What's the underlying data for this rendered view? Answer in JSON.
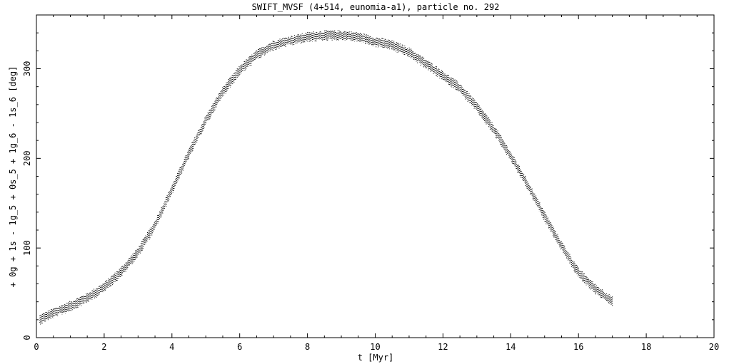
{
  "chart_data": {
    "type": "scatter",
    "title": "SWIFT_MVSF (4+514, eunomia-a1), particle no. 292",
    "xlabel": "t [Myr]",
    "ylabel": "+ 0g + 1s - 1g_5 + 0s_5 + 1g_6 - 1s_6 [deg]",
    "xlim": [
      0,
      20
    ],
    "ylim": [
      0,
      360
    ],
    "x_ticks": [
      0,
      2,
      4,
      6,
      8,
      10,
      12,
      14,
      16,
      18,
      20
    ],
    "y_ticks": [
      0,
      100,
      200,
      300
    ],
    "x_tick_labels": [
      "0",
      "2",
      "4",
      "6",
      "8",
      "10",
      "12",
      "14",
      "16",
      "18",
      "20"
    ],
    "y_tick_labels": [
      "0",
      "100",
      "200",
      "300"
    ],
    "grid": false,
    "legend": "none",
    "marker_color": "#000000",
    "series": [
      {
        "band_width": 12,
        "x": [
          0.1,
          0.5,
          1.0,
          1.5,
          2.0,
          2.5,
          3.0,
          3.5,
          4.0,
          4.5,
          5.0,
          5.5,
          6.0,
          6.5,
          7.0,
          7.5,
          8.0,
          8.5,
          9.0,
          9.5,
          10.0,
          10.5,
          11.0,
          11.5,
          12.0,
          12.5,
          13.0,
          13.5,
          14.0,
          14.5,
          15.0,
          15.5,
          16.0,
          16.5,
          17.0
        ],
        "y": [
          20,
          27,
          35,
          44,
          56,
          73,
          95,
          125,
          165,
          205,
          242,
          274,
          298,
          315,
          326,
          331,
          335,
          337,
          337,
          335,
          330,
          326,
          318,
          305,
          292,
          278,
          257,
          232,
          202,
          170,
          135,
          102,
          72,
          54,
          40
        ]
      }
    ]
  }
}
